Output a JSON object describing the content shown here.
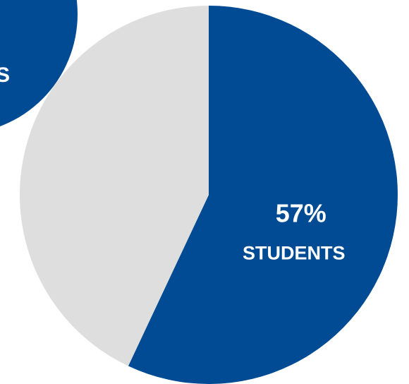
{
  "chart_data": {
    "type": "pie",
    "categories": [
      "STUDENTS",
      null
    ],
    "values": [
      57,
      43
    ],
    "value_labels": [
      "57%",
      null
    ],
    "colors": [
      "#004b93",
      "#dedede"
    ]
  },
  "clipped_circle": {
    "label": "S",
    "color": "#004b93"
  }
}
